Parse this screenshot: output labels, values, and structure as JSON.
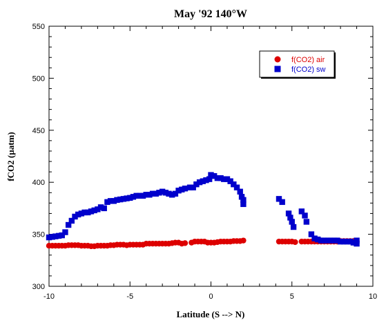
{
  "chart_data": {
    "type": "scatter",
    "title": "May '92 140°W",
    "xlabel": "Latitude (S --> N)",
    "ylabel": "fCO2 (µatm)",
    "xlim": [
      -10,
      10
    ],
    "ylim": [
      300,
      550
    ],
    "xticks": [
      -10,
      -5,
      0,
      5,
      10
    ],
    "xtick_labels": [
      "-10",
      "-5",
      "0",
      "5",
      "10"
    ],
    "yticks": [
      300,
      350,
      400,
      450,
      500,
      550
    ],
    "ytick_labels": [
      "300",
      "350",
      "400",
      "450",
      "500",
      "550"
    ],
    "grid": false,
    "legend_position": "top-right",
    "series": [
      {
        "name": "f(CO2) air",
        "color": "#dd0000",
        "marker": "circle",
        "x": [
          -10.0,
          -9.8,
          -9.6,
          -9.4,
          -9.2,
          -9.0,
          -8.8,
          -8.6,
          -8.4,
          -8.2,
          -8.0,
          -7.8,
          -7.6,
          -7.4,
          -7.2,
          -7.0,
          -6.8,
          -6.6,
          -6.4,
          -6.2,
          -6.0,
          -5.8,
          -5.6,
          -5.4,
          -5.2,
          -5.0,
          -4.8,
          -4.6,
          -4.4,
          -4.2,
          -4.0,
          -3.8,
          -3.6,
          -3.4,
          -3.2,
          -3.0,
          -2.8,
          -2.6,
          -2.4,
          -2.2,
          -2.0,
          -1.8,
          -1.6,
          -1.2,
          -1.0,
          -0.8,
          -0.6,
          -0.4,
          -0.2,
          0.0,
          0.2,
          0.4,
          0.6,
          0.8,
          1.0,
          1.2,
          1.4,
          1.6,
          1.8,
          2.0,
          4.2,
          4.4,
          4.6,
          4.8,
          5.0,
          5.2,
          5.6,
          5.8,
          6.0,
          6.2,
          6.4,
          6.6,
          6.8,
          7.0,
          7.2,
          7.4,
          7.6,
          7.8,
          8.0,
          8.2,
          8.4,
          8.6,
          8.8,
          9.0
        ],
        "values": [
          339,
          339,
          339,
          339,
          339,
          339,
          339.5,
          339.5,
          339.5,
          339.5,
          339,
          339,
          339,
          338.5,
          338.5,
          339,
          339,
          339,
          339,
          339.5,
          339.5,
          340,
          340,
          340,
          339.5,
          340,
          340,
          340,
          340,
          340,
          341,
          341,
          341,
          341,
          341,
          341,
          341,
          341,
          341.5,
          342,
          342,
          341,
          341.5,
          342,
          343,
          343,
          343,
          343,
          342,
          342,
          342,
          342.5,
          343,
          343,
          343,
          343,
          343.5,
          343.5,
          343.5,
          344,
          343,
          343,
          343,
          343,
          343,
          342.5,
          343,
          343,
          343,
          343,
          343,
          343,
          343,
          343,
          343,
          343,
          343,
          343,
          343.5,
          343.5,
          343.5,
          343.5,
          343.5,
          343.5
        ]
      },
      {
        "name": "f(CO2) sw",
        "color": "#0000cc",
        "marker": "square",
        "x": [
          -10.0,
          -9.8,
          -9.6,
          -9.4,
          -9.2,
          -9.0,
          -8.8,
          -8.6,
          -8.4,
          -8.2,
          -8.0,
          -7.8,
          -7.6,
          -7.4,
          -7.2,
          -7.0,
          -6.8,
          -6.6,
          -6.4,
          -6.2,
          -6.0,
          -5.8,
          -5.6,
          -5.4,
          -5.2,
          -5.0,
          -4.8,
          -4.6,
          -4.4,
          -4.2,
          -4.0,
          -3.8,
          -3.6,
          -3.4,
          -3.2,
          -3.0,
          -2.8,
          -2.6,
          -2.4,
          -2.2,
          -2.0,
          -1.8,
          -1.6,
          -1.3,
          -1.1,
          -0.9,
          -0.7,
          -0.5,
          -0.3,
          -0.1,
          0.0,
          0.2,
          0.4,
          0.6,
          0.8,
          1.0,
          1.2,
          1.4,
          1.6,
          1.8,
          1.9,
          2.0,
          2.0,
          4.2,
          4.4,
          4.8,
          4.9,
          5.0,
          5.1,
          5.6,
          5.8,
          5.9,
          6.2,
          6.4,
          6.6,
          6.8,
          7.0,
          7.2,
          7.4,
          7.6,
          7.8,
          8.0,
          8.2,
          8.4,
          8.6,
          8.8,
          9.0,
          9.0
        ],
        "values": [
          347,
          347.5,
          348,
          348.5,
          349,
          352,
          359,
          363,
          367,
          369,
          370,
          371,
          371,
          372,
          373,
          374,
          376,
          375,
          381,
          382,
          382,
          383,
          383.5,
          384,
          384.5,
          385,
          386,
          387,
          387,
          387,
          388,
          388,
          389,
          389,
          390,
          391,
          390,
          389,
          388,
          389,
          392,
          393,
          394,
          395,
          395,
          398,
          400,
          401,
          402,
          403,
          407,
          406,
          404,
          404,
          403,
          403,
          401,
          398,
          395,
          391,
          386,
          383,
          379,
          384,
          381,
          370,
          366,
          362,
          357,
          372,
          368,
          362,
          350,
          346,
          345,
          344,
          344,
          344,
          344,
          344,
          344,
          343,
          343,
          343,
          343,
          342,
          341,
          344
        ]
      }
    ]
  }
}
